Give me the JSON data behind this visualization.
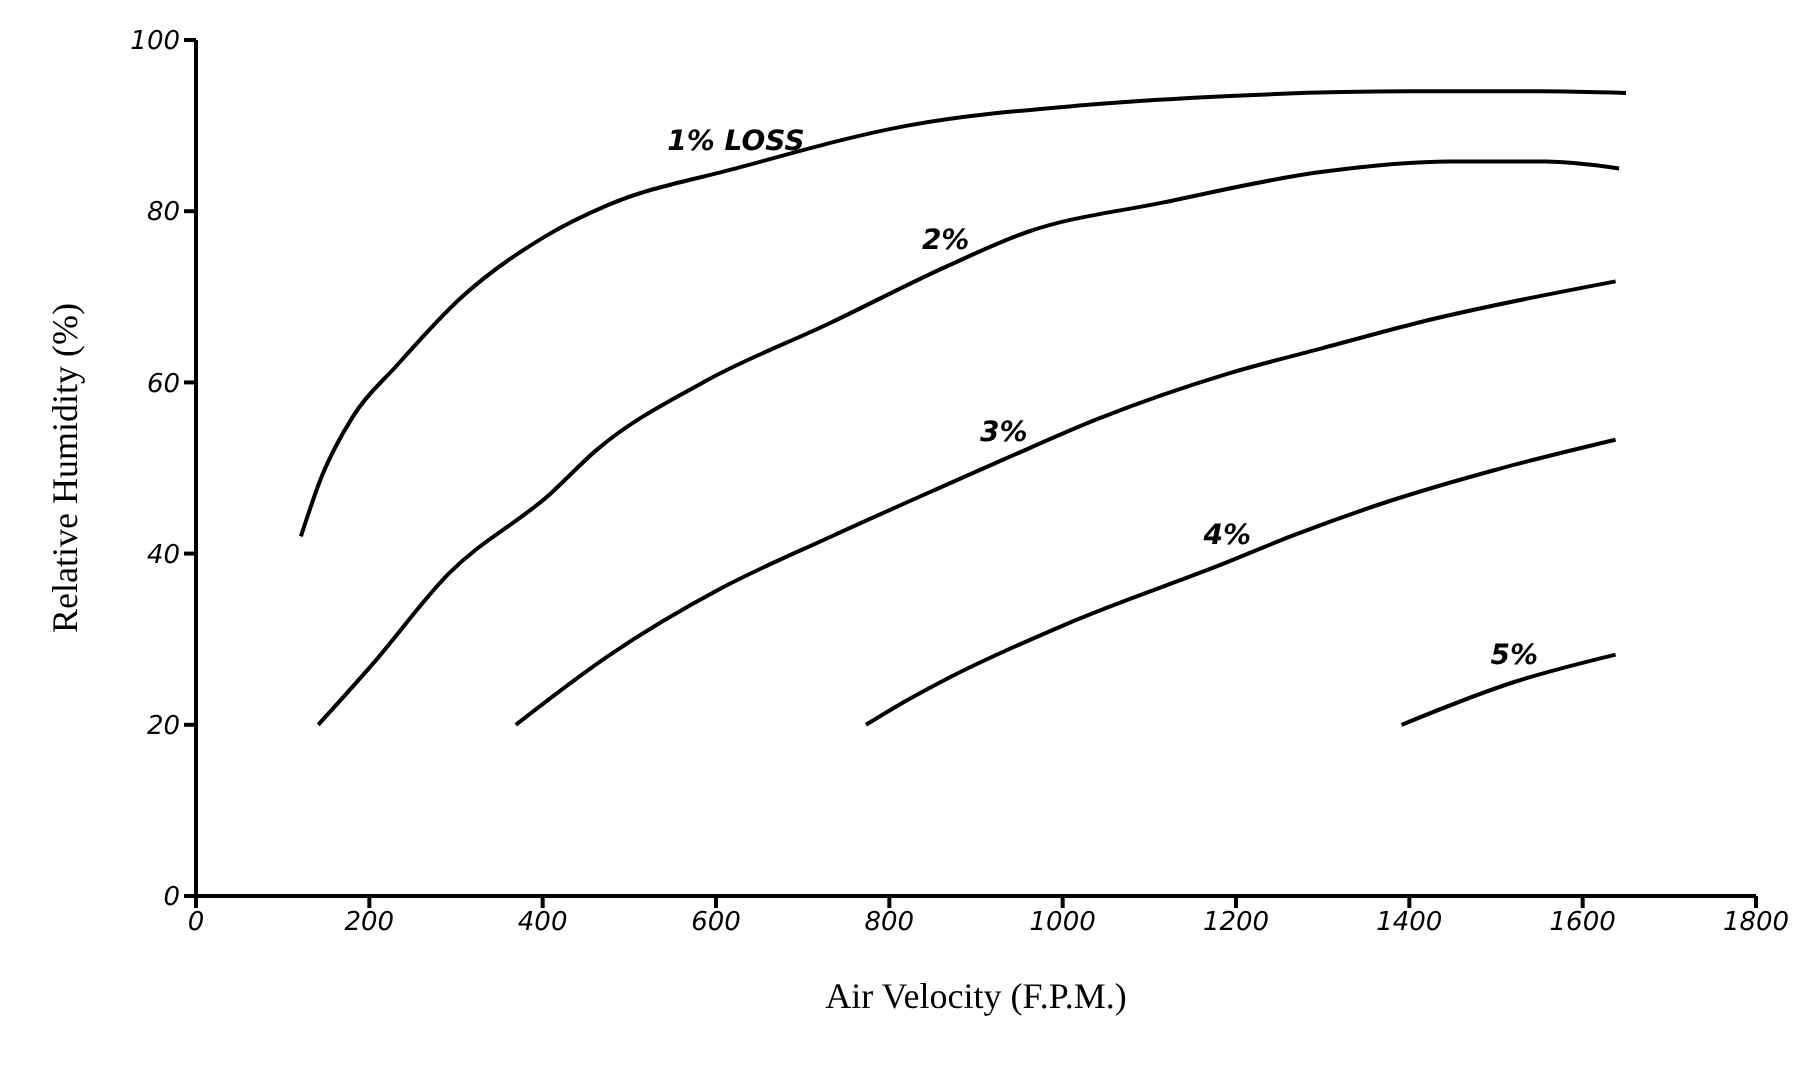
{
  "chart_data": {
    "type": "line",
    "xlabel": "Air Velocity (F.P.M.)",
    "ylabel": "Relative Humidity (%)",
    "xlim": [
      0,
      1800
    ],
    "ylim": [
      0,
      100
    ],
    "xticks": [
      0,
      200,
      400,
      600,
      800,
      1000,
      1200,
      1400,
      1600,
      1800
    ],
    "yticks": [
      0,
      20,
      40,
      60,
      80,
      100
    ],
    "grid": false,
    "series": [
      {
        "name": "1% LOSS",
        "color": "#000000",
        "x": [
          121,
          145,
          181,
          232,
          307,
          402,
          475,
          623,
          821,
          1026,
          1200,
          1400,
          1550,
          1650
        ],
        "values": [
          42,
          49,
          56,
          62,
          70,
          77,
          80.7,
          85,
          90,
          92.4,
          93.5,
          94,
          94,
          93.8
        ]
      },
      {
        "name": "2%",
        "color": "#000000",
        "x": [
          141,
          203,
          291,
          409,
          461,
          585,
          733,
          865,
          960,
          1115,
          1300,
          1446,
          1557,
          1642
        ],
        "values": [
          20,
          27,
          37.6,
          47,
          52,
          60,
          67,
          73.5,
          77.6,
          81,
          84.6,
          85.8,
          85.8,
          85
        ]
      },
      {
        "name": "3%",
        "color": "#000000",
        "x": [
          369,
          475,
          607,
          733,
          865,
          932,
          1042,
          1190,
          1300,
          1411,
          1638
        ],
        "values": [
          20,
          28,
          36,
          42,
          48,
          51,
          55.8,
          61,
          64,
          67,
          71.8
        ]
      },
      {
        "name": "4%",
        "color": "#000000",
        "x": [
          773,
          821,
          865,
          1005,
          1190,
          1263,
          1373,
          1500,
          1638
        ],
        "values": [
          20,
          22.9,
          25.3,
          31.8,
          39,
          42,
          46,
          49.8,
          53.3
        ]
      },
      {
        "name": "5%",
        "color": "#000000",
        "x": [
          1391,
          1521,
          1638
        ],
        "values": [
          20,
          25,
          28.2
        ]
      }
    ]
  }
}
